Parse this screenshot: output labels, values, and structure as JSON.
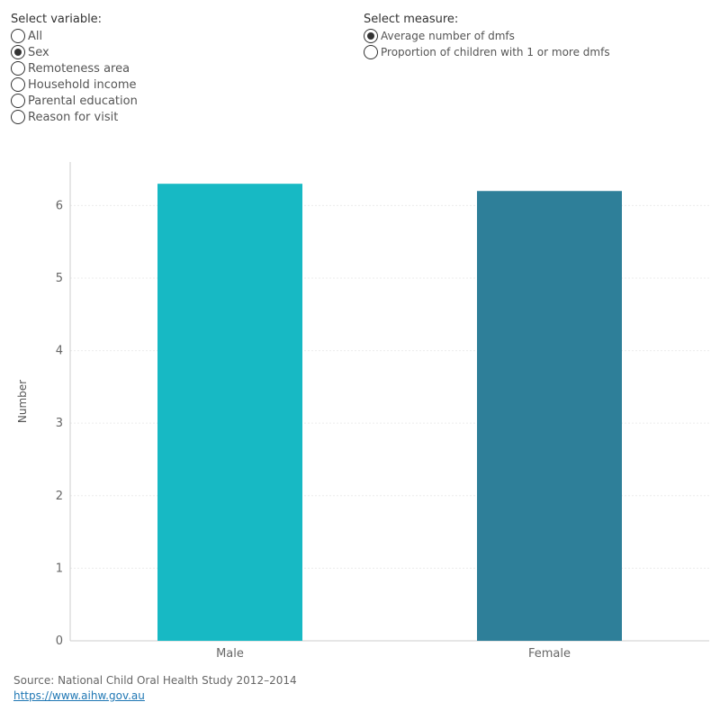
{
  "variable_selector": {
    "title": "Select variable:",
    "options": [
      "All",
      "Sex",
      "Remoteness area",
      "Household income",
      "Parental education",
      "Reason for visit"
    ],
    "selected_index": 1
  },
  "measure_selector": {
    "title": "Select measure:",
    "options": [
      "Average number of dmfs",
      "Proportion of children with 1 or more dmfs"
    ],
    "selected_index": 0
  },
  "chart_data": {
    "type": "bar",
    "categories": [
      "Male",
      "Female"
    ],
    "values": [
      6.3,
      6.2
    ],
    "colors": [
      "#17b9c4",
      "#2e7f99"
    ],
    "xlabel": "",
    "ylabel": "Number",
    "ylim": [
      0,
      6.6
    ],
    "yticks": [
      0,
      1,
      2,
      3,
      4,
      5,
      6
    ],
    "grid": true,
    "legend": "none"
  },
  "footer": {
    "source": "Source: National Child Oral Health Study 2012–2014",
    "link": "https://www.aihw.gov.au"
  }
}
